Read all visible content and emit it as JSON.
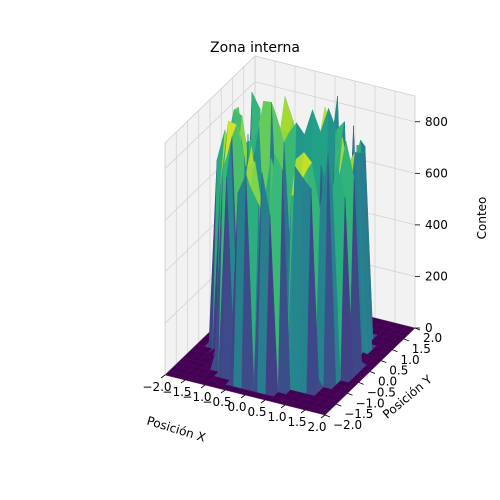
{
  "chart_data": {
    "type": "surface3d",
    "title": "Zona interna",
    "xlabel": "Posición X",
    "ylabel": "Posición Y",
    "zlabel": "Conteo",
    "xlim": [
      -2.0,
      2.0
    ],
    "ylim": [
      -2.0,
      2.0
    ],
    "zlim": [
      0,
      900
    ],
    "xticks": [
      "−2.0",
      "−1.5",
      "−1.0",
      "−0.5",
      "0.0",
      "0.5",
      "1.0",
      "1.5",
      "2.0"
    ],
    "yticks": [
      "−2.0",
      "−1.5",
      "−1.0",
      "−0.5",
      "0.0",
      "0.5",
      "1.0",
      "1.5",
      "2.0"
    ],
    "zticks": [
      "0",
      "200",
      "400",
      "600",
      "800"
    ],
    "colormap": "viridis",
    "grid": true,
    "surface": {
      "description_free": true,
      "grid_n": 20,
      "ring_inner_radius": 0.9,
      "ring_outer_radius": 1.7,
      "peak_value": 900,
      "floor_value": 0,
      "inner_plateau_value": 250
    }
  }
}
